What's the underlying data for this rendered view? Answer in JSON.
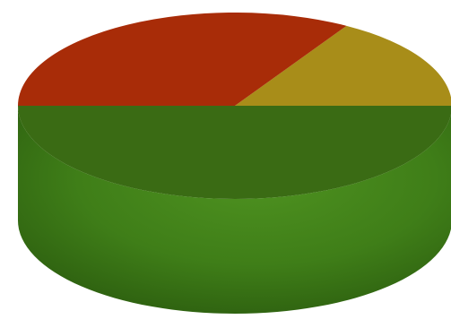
{
  "chart_data": {
    "type": "pie",
    "style": "3d-cylinder",
    "title": "",
    "legend": "none",
    "slices": [
      {
        "value": 50.0,
        "color": "#3a6b14"
      },
      {
        "value": 16.4,
        "color": "#a88d19"
      },
      {
        "value": 33.6,
        "color": "#a82c08"
      }
    ]
  }
}
